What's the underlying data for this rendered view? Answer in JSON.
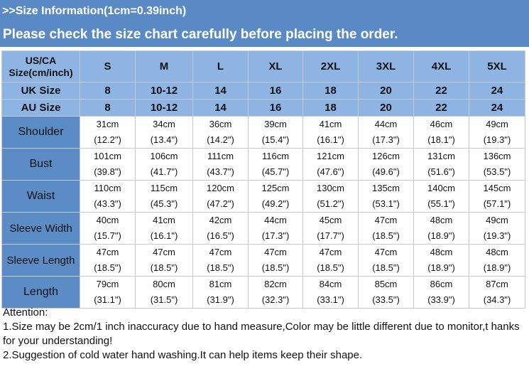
{
  "title": ">>Size Information(1cm=0.39inch)",
  "subtitle": "Please check the size chart carefully before placing the order.",
  "header_label_line1": "US/CA",
  "header_label_line2": "Size(cm/inch)",
  "sizes": [
    "S",
    "M",
    "L",
    "XL",
    "2XL",
    "3XL",
    "4XL",
    "5XL"
  ],
  "uk": {
    "label": "UK Size",
    "values": [
      "8",
      "10-12",
      "14",
      "16",
      "18",
      "20",
      "22",
      "24"
    ]
  },
  "au": {
    "label": "AU Size",
    "values": [
      "8",
      "10-12",
      "14",
      "16",
      "18",
      "20",
      "22",
      "24"
    ]
  },
  "rows": [
    {
      "label": "Shoulder",
      "cm": [
        "31cm",
        "34cm",
        "36cm",
        "39cm",
        "41cm",
        "44cm",
        "46cm",
        "49cm"
      ],
      "inch": [
        "(12.2\")",
        "(13.4\")",
        "(14.2\")",
        "(15.4\")",
        "(16.1\")",
        "(17.3\")",
        "(18.1\")",
        "(19.3\")"
      ]
    },
    {
      "label": "Bust",
      "cm": [
        "101cm",
        "106cm",
        "111cm",
        "116cm",
        "121cm",
        "126cm",
        "131cm",
        "136cm"
      ],
      "inch": [
        "(39.8\")",
        "(41.7\")",
        "(43.7\")",
        "(45.7\")",
        "(47.6\")",
        "(49.6\")",
        "(51.6\")",
        "(53.5\")"
      ]
    },
    {
      "label": "Waist",
      "cm": [
        "110cm",
        "115cm",
        "120cm",
        "125cm",
        "130cm",
        "135cm",
        "140cm",
        "145cm"
      ],
      "inch": [
        "(43.3\")",
        "(45.3\")",
        "(47.2\")",
        "(49.2\")",
        "(51.2\")",
        "(53.1\")",
        "(55.1\")",
        "(57.1\")"
      ]
    },
    {
      "label": "Sleeve Width",
      "cm": [
        "40cm",
        "41cm",
        "42cm",
        "44cm",
        "45cm",
        "47cm",
        "48cm",
        "49cm"
      ],
      "inch": [
        "(15.7\")",
        "(16.1\")",
        "(16.5\")",
        "(17.3\")",
        "(17.7\")",
        "(18.5\")",
        "(18.9\")",
        "(19.3\")"
      ]
    },
    {
      "label": "Sleeve Length",
      "cm": [
        "47cm",
        "47cm",
        "47cm",
        "47cm",
        "47cm",
        "47cm",
        "48cm",
        "48cm"
      ],
      "inch": [
        "(18.5\")",
        "(18.5\")",
        "(18.5\")",
        "(18.5\")",
        "(18.5\")",
        "(18.5\")",
        "(18.9\")",
        "(18.9\")"
      ]
    },
    {
      "label": "Length",
      "cm": [
        "79cm",
        "80cm",
        "81cm",
        "82cm",
        "84cm",
        "85cm",
        "86cm",
        "87cm"
      ],
      "inch": [
        "(31.1\")",
        "(31.5\")",
        "(31.9\")",
        "(32.3\")",
        "(33.1\")",
        "(33.5\")",
        "(33.9\")",
        "(34.3\")"
      ]
    }
  ],
  "notes": {
    "heading": "Attention:",
    "line1": "1.Size may be 2cm/1 inch inaccuracy due to hand measure,Color may be little different due to monitor,t hanks for your understanding!",
    "line2": "2.Suggestion of cold water hand washing.It can help items keep their shape."
  },
  "colors": {
    "title_bar": "#5a8ac6",
    "header_cell": "#8eb4e3",
    "row_label": "#5b8cc6"
  }
}
